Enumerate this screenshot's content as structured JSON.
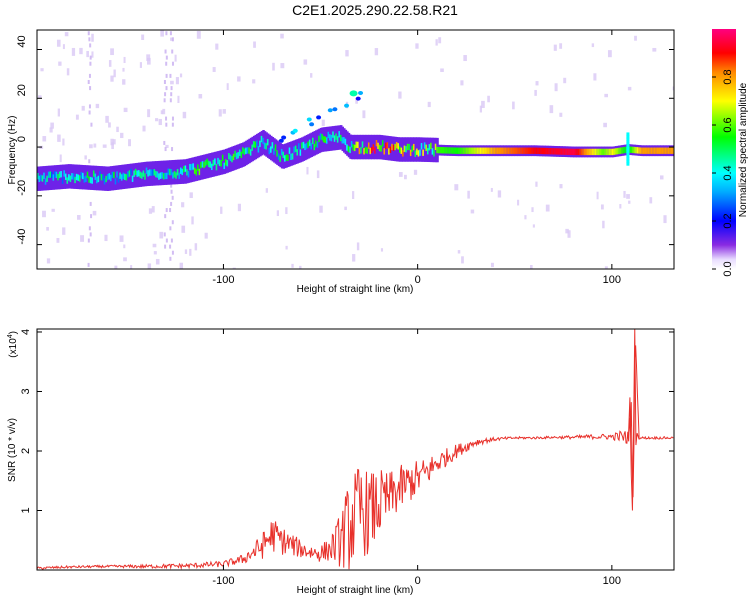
{
  "title": "C2E1.2025.290.22.58.R21",
  "chart_data": [
    {
      "type": "heatmap",
      "xlabel": "Height of straight line (km)",
      "ylabel": "Frequency (Hz)",
      "xlim": [
        -196,
        132
      ],
      "ylim": [
        -50,
        48
      ],
      "xticks": [
        -100,
        0,
        100
      ],
      "yticks": [
        -40,
        -20,
        0,
        20,
        40
      ],
      "colorbar": {
        "label": "Normalized spectral amplitude",
        "range": [
          0,
          1
        ],
        "ticks": [
          "0.0",
          "0.2",
          "0.4",
          "0.6",
          "0.8"
        ],
        "tick_values": [
          0.0,
          0.2,
          0.4,
          0.6,
          0.8
        ],
        "colors": [
          "#e8dcff",
          "#8a2be2",
          "#0000ff",
          "#00ffff",
          "#00ff00",
          "#ffff00",
          "#ff8800",
          "#ff0000",
          "#ff0080"
        ]
      },
      "ridge": {
        "x": [
          -196,
          -180,
          -160,
          -140,
          -120,
          -110,
          -100,
          -90,
          -80,
          -70,
          -60,
          -50,
          -40,
          -35,
          -30,
          -20,
          -10,
          0,
          20,
          40,
          60,
          80,
          95,
          100,
          108,
          115,
          132
        ],
        "freq": [
          -13,
          -12,
          -13,
          -11,
          -10,
          -8,
          -6,
          -3,
          2,
          -4,
          -1,
          3,
          4,
          0,
          0,
          0,
          -1,
          -1,
          -1.5,
          -1.5,
          -1.5,
          -2,
          -2,
          -2,
          -1,
          -1.5,
          -1.5
        ],
        "amplitude": [
          0.4,
          0.45,
          0.45,
          0.45,
          0.45,
          0.55,
          0.6,
          0.5,
          0.45,
          0.5,
          0.45,
          0.5,
          0.45,
          0.5,
          0.7,
          0.85,
          0.75,
          0.6,
          0.55,
          0.8,
          0.9,
          0.95,
          0.6,
          0.7,
          0.5,
          0.8,
          0.8
        ]
      }
    },
    {
      "type": "line",
      "xlabel": "Height of straight line (km)",
      "ylabel": "SNR (10 * v/v)",
      "y_multiplier": "(x10",
      "y_exponent": "4",
      "y_multiplier_close": ")",
      "xlim": [
        -196,
        132
      ],
      "ylim": [
        0,
        4.05
      ],
      "xticks": [
        -100,
        0,
        100
      ],
      "yticks": [
        1,
        2,
        3,
        4
      ],
      "color": "#e8312b",
      "series": [
        {
          "name": "SNR",
          "x": [
            -196,
            -180,
            -160,
            -140,
            -120,
            -100,
            -90,
            -80,
            -75,
            -70,
            -60,
            -55,
            -50,
            -45,
            -40,
            -35,
            -30,
            -25,
            -20,
            -15,
            -10,
            -5,
            0,
            5,
            10,
            15,
            20,
            30,
            40,
            50,
            60,
            70,
            80,
            90,
            100,
            105,
            108,
            110,
            111,
            112,
            114,
            120,
            132
          ],
          "y": [
            0.03,
            0.05,
            0.06,
            0.06,
            0.07,
            0.1,
            0.18,
            0.4,
            0.6,
            0.5,
            0.35,
            0.3,
            0.28,
            0.35,
            0.5,
            0.75,
            1.0,
            0.95,
            1.1,
            1.2,
            1.35,
            1.45,
            1.55,
            1.65,
            1.8,
            1.9,
            2.0,
            2.15,
            2.2,
            2.22,
            2.22,
            2.23,
            2.23,
            2.24,
            2.24,
            2.25,
            2.2,
            2.6,
            1.0,
            4.05,
            2.22,
            2.22,
            2.22
          ],
          "noise": [
            0.02,
            0.02,
            0.02,
            0.03,
            0.04,
            0.05,
            0.08,
            0.22,
            0.3,
            0.25,
            0.15,
            0.14,
            0.15,
            0.2,
            0.45,
            0.8,
            0.8,
            0.7,
            0.6,
            0.45,
            0.4,
            0.35,
            0.3,
            0.25,
            0.2,
            0.15,
            0.12,
            0.06,
            0.03,
            0.02,
            0.02,
            0.02,
            0.03,
            0.04,
            0.05,
            0.1,
            0.15,
            0.25,
            0.1,
            0.05,
            0.02,
            0.02,
            0.02
          ]
        }
      ]
    }
  ]
}
